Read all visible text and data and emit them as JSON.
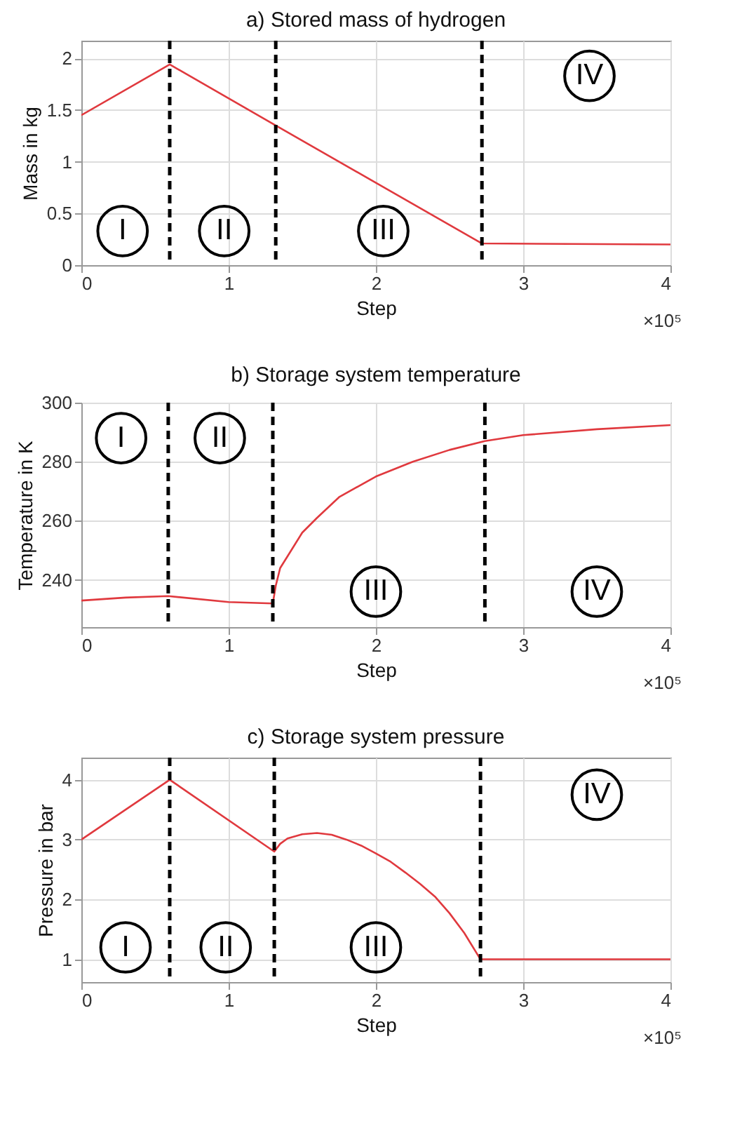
{
  "chart_data": [
    {
      "type": "line",
      "title": "a) Stored mass of hydrogen",
      "xlabel": "Step",
      "ylabel": "Mass in kg",
      "x": [
        0,
        0.6,
        1.32,
        2.72,
        4
      ],
      "series": [
        {
          "color": "#e0393e",
          "values": [
            1.45,
            1.94,
            1.35,
            0.21,
            0.2
          ]
        }
      ],
      "xlim": [
        0,
        4
      ],
      "xticks": [
        0,
        1,
        2,
        3,
        4
      ],
      "ylim": [
        0,
        2.17
      ],
      "yticks": [
        0,
        0.5,
        1,
        1.5,
        2
      ],
      "grid": true,
      "line_style": "solid",
      "ref_lines": [
        {
          "axis": "x",
          "value": 0.6,
          "color": "#000000",
          "line_style": "dashed"
        },
        {
          "axis": "x",
          "value": 1.32,
          "color": "#000000",
          "line_style": "dashed"
        },
        {
          "axis": "x",
          "value": 2.72,
          "color": "#000000",
          "line_style": "dashed"
        }
      ],
      "annotations": [
        {
          "text": "I",
          "x": 0.28,
          "y": 0.33
        },
        {
          "text": "II",
          "x": 0.97,
          "y": 0.33
        },
        {
          "text": "III",
          "x": 2.05,
          "y": 0.33
        },
        {
          "text": "IV",
          "x": 3.45,
          "y": 1.83
        },
        "×10⁵"
      ]
    },
    {
      "type": "line",
      "title": "b) Storage system temperature",
      "xlabel": "Step",
      "ylabel": "Temperature in K",
      "x": [
        0,
        0.3,
        0.59,
        1,
        1.3,
        1.32,
        1.35,
        1.4,
        1.5,
        1.6,
        1.75,
        2,
        2.25,
        2.5,
        2.74,
        3,
        3.5,
        4
      ],
      "series": [
        {
          "color": "#e0393e",
          "values": [
            233,
            234,
            234.5,
            232.5,
            232,
            238,
            244,
            248,
            256,
            261,
            268,
            275,
            280,
            284,
            287,
            289,
            291,
            292.4
          ]
        }
      ],
      "xlim": [
        0,
        4
      ],
      "xticks": [
        0,
        1,
        2,
        3,
        4
      ],
      "ylim": [
        224,
        300
      ],
      "yticks": [
        240,
        260,
        280,
        300
      ],
      "grid": true,
      "line_style": "solid",
      "ref_lines": [
        {
          "axis": "x",
          "value": 0.59,
          "color": "#000000",
          "line_style": "dashed"
        },
        {
          "axis": "x",
          "value": 1.3,
          "color": "#000000",
          "line_style": "dashed"
        },
        {
          "axis": "x",
          "value": 2.74,
          "color": "#000000",
          "line_style": "dashed"
        }
      ],
      "annotations": [
        {
          "text": "I",
          "x": 0.27,
          "y": 288
        },
        {
          "text": "II",
          "x": 0.94,
          "y": 288
        },
        {
          "text": "III",
          "x": 2,
          "y": 236
        },
        {
          "text": "IV",
          "x": 3.5,
          "y": 236
        },
        "×10⁵"
      ]
    },
    {
      "type": "line",
      "title": "c) Storage system pressure",
      "xlabel": "Step",
      "ylabel": "Pressure in bar",
      "x": [
        0,
        0.6,
        1.31,
        1.35,
        1.4,
        1.5,
        1.6,
        1.7,
        1.8,
        1.9,
        2,
        2.1,
        2.2,
        2.3,
        2.4,
        2.5,
        2.6,
        2.71,
        4
      ],
      "series": [
        {
          "color": "#e0393e",
          "values": [
            3,
            4,
            2.8,
            2.93,
            3.02,
            3.09,
            3.11,
            3.08,
            3,
            2.9,
            2.77,
            2.63,
            2.45,
            2.26,
            2.05,
            1.77,
            1.44,
            1,
            1
          ]
        }
      ],
      "xlim": [
        0,
        4
      ],
      "xticks": [
        0,
        1,
        2,
        3,
        4
      ],
      "ylim": [
        0.62,
        4.37
      ],
      "yticks": [
        1,
        2,
        3,
        4
      ],
      "grid": true,
      "line_style": "solid",
      "ref_lines": [
        {
          "axis": "x",
          "value": 0.6,
          "color": "#000000",
          "line_style": "dashed"
        },
        {
          "axis": "x",
          "value": 1.31,
          "color": "#000000",
          "line_style": "dashed"
        },
        {
          "axis": "x",
          "value": 2.71,
          "color": "#000000",
          "line_style": "dashed"
        }
      ],
      "annotations": [
        {
          "text": "I",
          "x": 0.3,
          "y": 1.2
        },
        {
          "text": "II",
          "x": 0.98,
          "y": 1.2
        },
        {
          "text": "III",
          "x": 2,
          "y": 1.2
        },
        {
          "text": "IV",
          "x": 3.5,
          "y": 3.75
        },
        "×10⁵"
      ]
    }
  ]
}
